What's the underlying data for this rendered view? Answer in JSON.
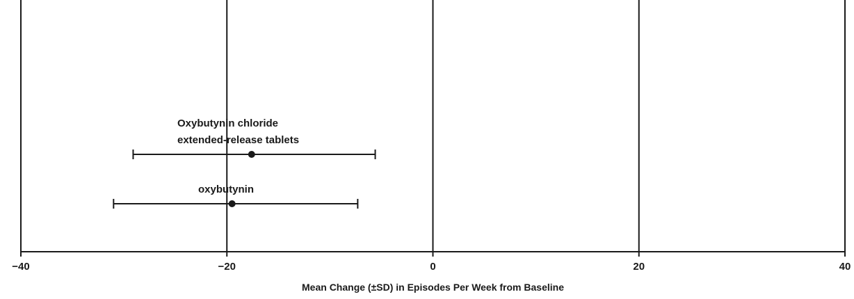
{
  "chart_data": {
    "type": "forest",
    "xlabel": "Mean Change (±SD) in Episodes Per Week from Baseline",
    "xlim": [
      -40,
      40
    ],
    "xticks": [
      -40,
      -20,
      0,
      20,
      40
    ],
    "gridlines_x": [
      -40,
      -20,
      0,
      20,
      40
    ],
    "series": [
      {
        "label_lines": [
          "Oxybutynin chloride",
          "extended-release tablets"
        ],
        "mean": -17.6,
        "sd_low": -29.1,
        "sd_high": -5.6
      },
      {
        "label_lines": [
          "oxybutynin"
        ],
        "mean": -19.5,
        "sd_low": -31.0,
        "sd_high": -7.3
      }
    ]
  }
}
